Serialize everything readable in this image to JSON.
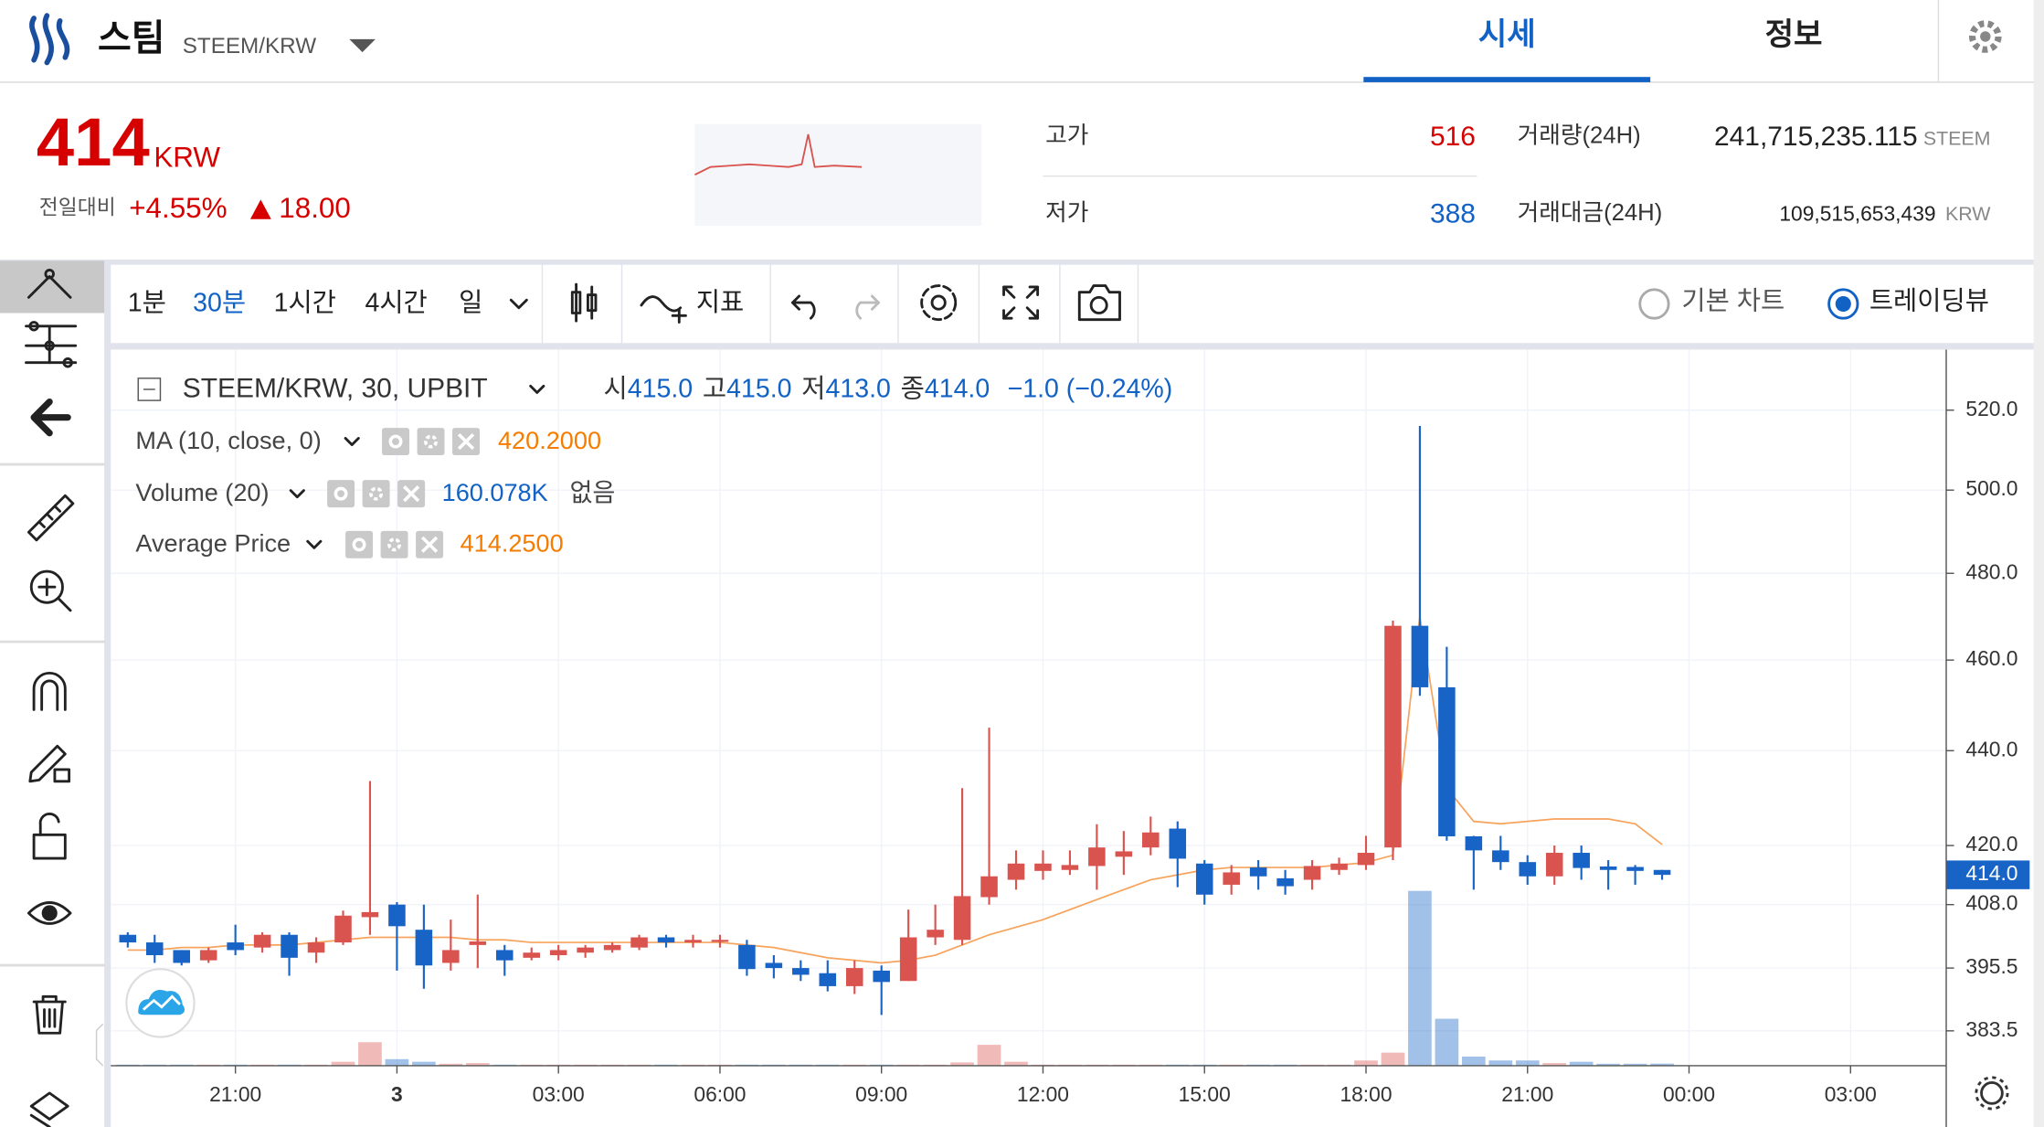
{
  "header": {
    "name": "스팀",
    "pair": "STEEM/KRW",
    "tabs": [
      "시세",
      "정보"
    ]
  },
  "price": {
    "value": "414",
    "unit": "KRW",
    "change_label": "전일대비",
    "change_pct": "+4.55%",
    "change_abs": "18.00"
  },
  "stats": {
    "high_label": "고가",
    "high": "516",
    "low_label": "저가",
    "low": "388",
    "volume_label": "거래량(24H)",
    "volume": "241,715,235.115",
    "volume_unit": "STEEM",
    "amount_label": "거래대금(24H)",
    "amount": "109,515,653,439",
    "amount_unit": "KRW"
  },
  "toolbar": {
    "intervals": [
      "1분",
      "30분",
      "1시간",
      "4시간",
      "일"
    ],
    "indicators": "지표",
    "chart_modes": [
      "기본 차트",
      "트레이딩뷰"
    ]
  },
  "legend": {
    "symbol": "STEEM/KRW, 30, UPBIT",
    "ohlc": [
      {
        "label": "시",
        "value": "415.0"
      },
      {
        "label": "고",
        "value": "415.0"
      },
      {
        "label": "저",
        "value": "413.0"
      },
      {
        "label": "종",
        "value": "414.0"
      }
    ],
    "change": "−1.0 (−0.24%)"
  },
  "chart_data": {
    "type": "candlestick",
    "log": true,
    "grid": true,
    "up_color": "#d9534f",
    "down_color": "#1763c6",
    "categories": [
      null,
      null,
      null,
      null,
      "21:00",
      null,
      null,
      null,
      null,
      null,
      "3",
      null,
      null,
      null,
      null,
      null,
      "03:00",
      null,
      null,
      null,
      null,
      null,
      "06:00",
      null,
      null,
      null,
      null,
      null,
      "09:00",
      null,
      null,
      null,
      null,
      null,
      "12:00",
      null,
      null,
      null,
      null,
      null,
      "15:00",
      null,
      null,
      null,
      null,
      null,
      "18:00",
      null,
      null,
      null,
      null,
      null,
      "21:00",
      null,
      null,
      null,
      null,
      null,
      "00:00",
      null,
      null,
      null,
      null,
      null,
      "03:00",
      null,
      null,
      null
    ],
    "open": [
      402,
      400.5,
      399,
      397,
      400.5,
      399.5,
      402,
      398.5,
      400.5,
      405.5,
      408,
      403,
      396.5,
      400,
      399,
      397.5,
      398,
      398.5,
      399,
      399.5,
      401.5,
      400.5,
      400.8,
      400,
      396.5,
      395.5,
      394.5,
      392,
      395,
      393,
      401.5,
      401,
      409.5,
      413,
      414.8,
      415,
      415.8,
      417.7,
      419.6,
      423.5,
      416.3,
      412,
      415.5,
      413.3,
      413,
      415,
      416,
      419.6,
      467.8,
      453.9,
      421.9,
      419,
      416.6,
      413.7,
      418.5,
      415.7,
      415.6,
      415,
      null,
      null,
      null,
      null,
      null,
      null,
      null,
      null,
      null,
      null
    ],
    "high": [
      402.5,
      402,
      399,
      399.5,
      404,
      402.5,
      402.5,
      401.5,
      406.8,
      433.5,
      408.5,
      408,
      405,
      410,
      400,
      399.5,
      400,
      400,
      400.5,
      402,
      402,
      402,
      402,
      401,
      398,
      397,
      397,
      397,
      396,
      407,
      408,
      432,
      445,
      419,
      419,
      419,
      424.4,
      423,
      426,
      425,
      417,
      416,
      417,
      415,
      417,
      417.5,
      422,
      469,
      516,
      463,
      422,
      422,
      418,
      420,
      420,
      417,
      416,
      415,
      null,
      null,
      null,
      null,
      null,
      null,
      null,
      null,
      null,
      null
    ],
    "low": [
      399.5,
      396.5,
      396,
      396.5,
      398,
      398.5,
      394,
      396.5,
      400,
      402,
      395,
      391.5,
      395,
      395.5,
      394,
      397,
      397,
      397.5,
      398.5,
      399,
      399.5,
      399.5,
      399.5,
      394,
      393.5,
      393,
      391,
      390.5,
      386.5,
      393,
      400,
      400,
      408,
      411,
      413,
      414,
      411,
      414,
      418,
      411.5,
      408,
      410,
      411,
      410,
      411,
      414,
      415,
      417,
      452,
      421,
      411,
      415,
      412,
      412,
      413,
      411,
      412,
      413,
      null,
      null,
      null,
      null,
      null,
      null,
      null,
      null,
      null,
      null
    ],
    "close": [
      400.5,
      398,
      396.5,
      399,
      399,
      402,
      397.5,
      400.5,
      405.8,
      406.5,
      403.7,
      396,
      399,
      400.7,
      397,
      398.5,
      399,
      399.5,
      400,
      401.5,
      400.5,
      401,
      401,
      395.3,
      395.5,
      394.2,
      392,
      395.5,
      392.8,
      401.5,
      403,
      409.7,
      413.7,
      416.3,
      416.3,
      416,
      419.6,
      418.8,
      422.7,
      417.3,
      410,
      414.5,
      413.7,
      411.7,
      415.8,
      416.3,
      418.5,
      467.8,
      453.9,
      421.9,
      419,
      416.6,
      413.7,
      418.5,
      415.4,
      415,
      414.8,
      414,
      null,
      null,
      null,
      null,
      null,
      null,
      null,
      null,
      null,
      null
    ],
    "ma": {
      "name": "MA (10, close, 0)",
      "color": "#f7a35c",
      "value_label": "420.2000",
      "values": [
        399,
        399,
        399.5,
        399.5,
        400,
        400,
        400,
        400.5,
        401,
        401.5,
        401.5,
        401.5,
        401.5,
        401,
        401,
        400.5,
        400.5,
        400.5,
        400.5,
        400.5,
        400.5,
        400.5,
        400.5,
        400,
        399.5,
        398.5,
        397.5,
        397,
        396.5,
        397,
        398,
        400,
        402,
        403.5,
        405,
        407,
        409,
        411,
        413,
        414,
        415,
        415.5,
        415.5,
        415.5,
        415.5,
        416,
        416.5,
        418,
        470,
        432,
        425,
        424.5,
        425,
        425.5,
        425.5,
        425.5,
        424.5,
        420.2,
        null,
        null,
        null,
        null,
        null,
        null,
        null,
        null,
        null,
        null
      ]
    },
    "volume": {
      "name": "Volume (20)",
      "value_label": "160.078K",
      "note": "없음",
      "values": [
        80,
        80,
        80,
        80,
        80,
        80,
        80,
        80,
        300,
        1800,
        500,
        300,
        150,
        200,
        80,
        80,
        80,
        80,
        80,
        80,
        80,
        80,
        80,
        80,
        80,
        80,
        80,
        80,
        80,
        80,
        80,
        250,
        1600,
        300,
        80,
        80,
        80,
        80,
        80,
        80,
        80,
        80,
        80,
        80,
        80,
        80,
        400,
        1000,
        13400,
        3600,
        700,
        400,
        400,
        200,
        300,
        150,
        150,
        160.078,
        null,
        null,
        null,
        null,
        null,
        null,
        null,
        null,
        null,
        null
      ]
    },
    "average_price": {
      "name": "Average Price",
      "value_label": "414.2500"
    },
    "ylim": [
      377,
      535
    ],
    "yticks": [
      {
        "value": 520,
        "label": "520.0"
      },
      {
        "value": 500,
        "label": "500.0"
      },
      {
        "value": 480,
        "label": "480.0"
      },
      {
        "value": 460,
        "label": "460.0"
      },
      {
        "value": 440,
        "label": "440.0"
      },
      {
        "value": 420,
        "label": "420.0"
      },
      {
        "value": 408,
        "label": "408.0"
      },
      {
        "value": 395.5,
        "label": "395.5"
      },
      {
        "value": 383.5,
        "label": "383.5"
      }
    ],
    "last_price": {
      "value": 414,
      "label": "414.0"
    }
  }
}
